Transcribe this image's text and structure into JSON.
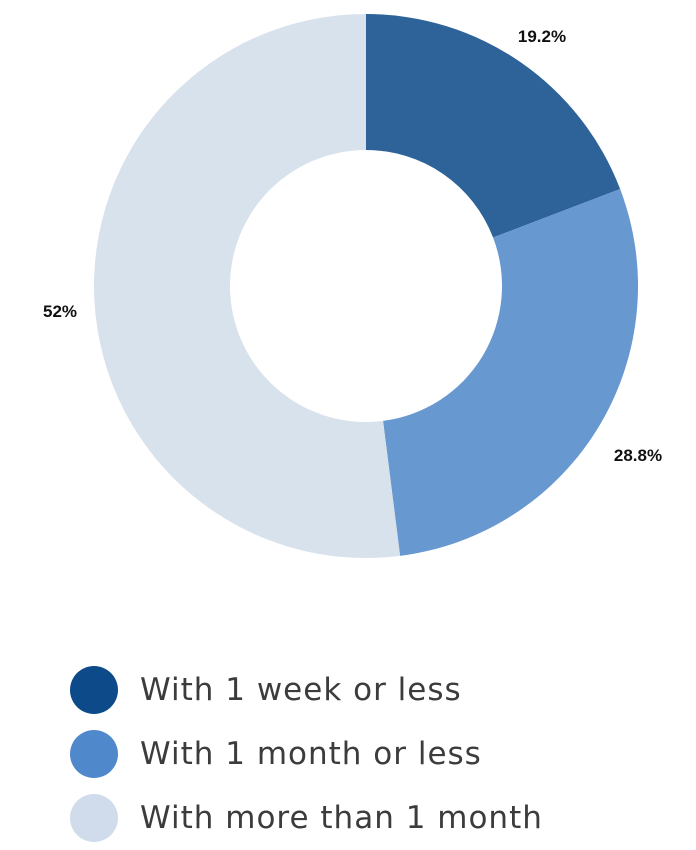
{
  "chart_data": {
    "type": "pie",
    "donut": true,
    "slices": [
      {
        "label": "With 1 week or less",
        "value": 19.2,
        "value_label": "19.2%",
        "color": "#2e6399"
      },
      {
        "label": "With 1 month or less",
        "value": 28.8,
        "value_label": "28.8%",
        "color": "#6898d0"
      },
      {
        "label": "With more than 1 month",
        "value": 52,
        "value_label": "52%",
        "color": "#d8e2ed"
      }
    ],
    "legend": {
      "placement": "bottom",
      "entries": [
        {
          "label": "With 1 week or less",
          "color": "#0d4a8a"
        },
        {
          "label": "With 1 month or less",
          "color": "#5088cc"
        },
        {
          "label": "With more than 1 month",
          "color": "#d0dceb"
        }
      ]
    }
  }
}
